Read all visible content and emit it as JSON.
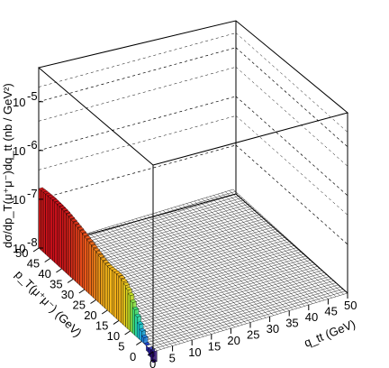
{
  "chart_data": {
    "type": "bar3d",
    "title": "",
    "zlabel": "dσ/dp_T(μ⁺μ⁻)dq_tt (nb / GeV²)",
    "xlabel": "p_T(μ⁺μ⁻) (GeV)",
    "ylabel": "q_tt (GeV)",
    "zscale": "log",
    "zlim": [
      1e-08,
      5e-05
    ],
    "xlim": [
      0,
      50
    ],
    "ylim": [
      0,
      50
    ],
    "z_ticks": [
      {
        "value": 1e-08,
        "label": "10"
      },
      {
        "value": 1e-07,
        "label": "10"
      },
      {
        "value": 1e-06,
        "label": "10"
      },
      {
        "value": 1e-05,
        "label": "10"
      }
    ],
    "z_tick_exponents": [
      "-8",
      "-7",
      "-6",
      "-5"
    ],
    "x_ticks": [
      "0",
      "5",
      "10",
      "15",
      "20",
      "25",
      "30",
      "35",
      "40",
      "45",
      "50"
    ],
    "y_ticks": [
      "0",
      "5",
      "10",
      "15",
      "20",
      "25",
      "30",
      "35",
      "40",
      "45",
      "50"
    ],
    "pt_bin_width": 1,
    "qtt_first_bin": [
      0,
      1
    ],
    "values_qtt_first_bin": [
      6e-09,
      7e-09,
      8e-09,
      1e-08,
      1.3e-08,
      1.6e-08,
      2e-08,
      2.6e-08,
      3.3e-08,
      4.2e-08,
      5.3e-08,
      6.2e-08,
      7e-08,
      7.6e-08,
      8e-08,
      8.2e-08,
      8.2e-08,
      8.1e-08,
      8e-08,
      8e-08,
      8.1e-08,
      8.3e-08,
      8.6e-08,
      9e-08,
      9.5e-08,
      1e-07,
      1.05e-07,
      1.1e-07,
      1.15e-07,
      1.2e-07,
      1.25e-07,
      1.3e-07,
      1.35e-07,
      1.4e-07,
      1.45e-07,
      1.5e-07,
      1.55e-07,
      1.6e-07,
      1.65e-07,
      1.68e-07,
      1.7e-07,
      1.72e-07,
      1.73e-07,
      1.74e-07,
      1.75e-07,
      1.74e-07,
      1.72e-07,
      1.7e-07,
      1.68e-07,
      1.65e-07
    ],
    "values_other_qtt_bins": "empty",
    "grid": true,
    "palette": [
      "#2a0b6b",
      "#1f2fc9",
      "#1f8ee0",
      "#18d0c8",
      "#3ee07a",
      "#b8e629",
      "#f5c51a",
      "#f0611a",
      "#c80f1a"
    ]
  }
}
